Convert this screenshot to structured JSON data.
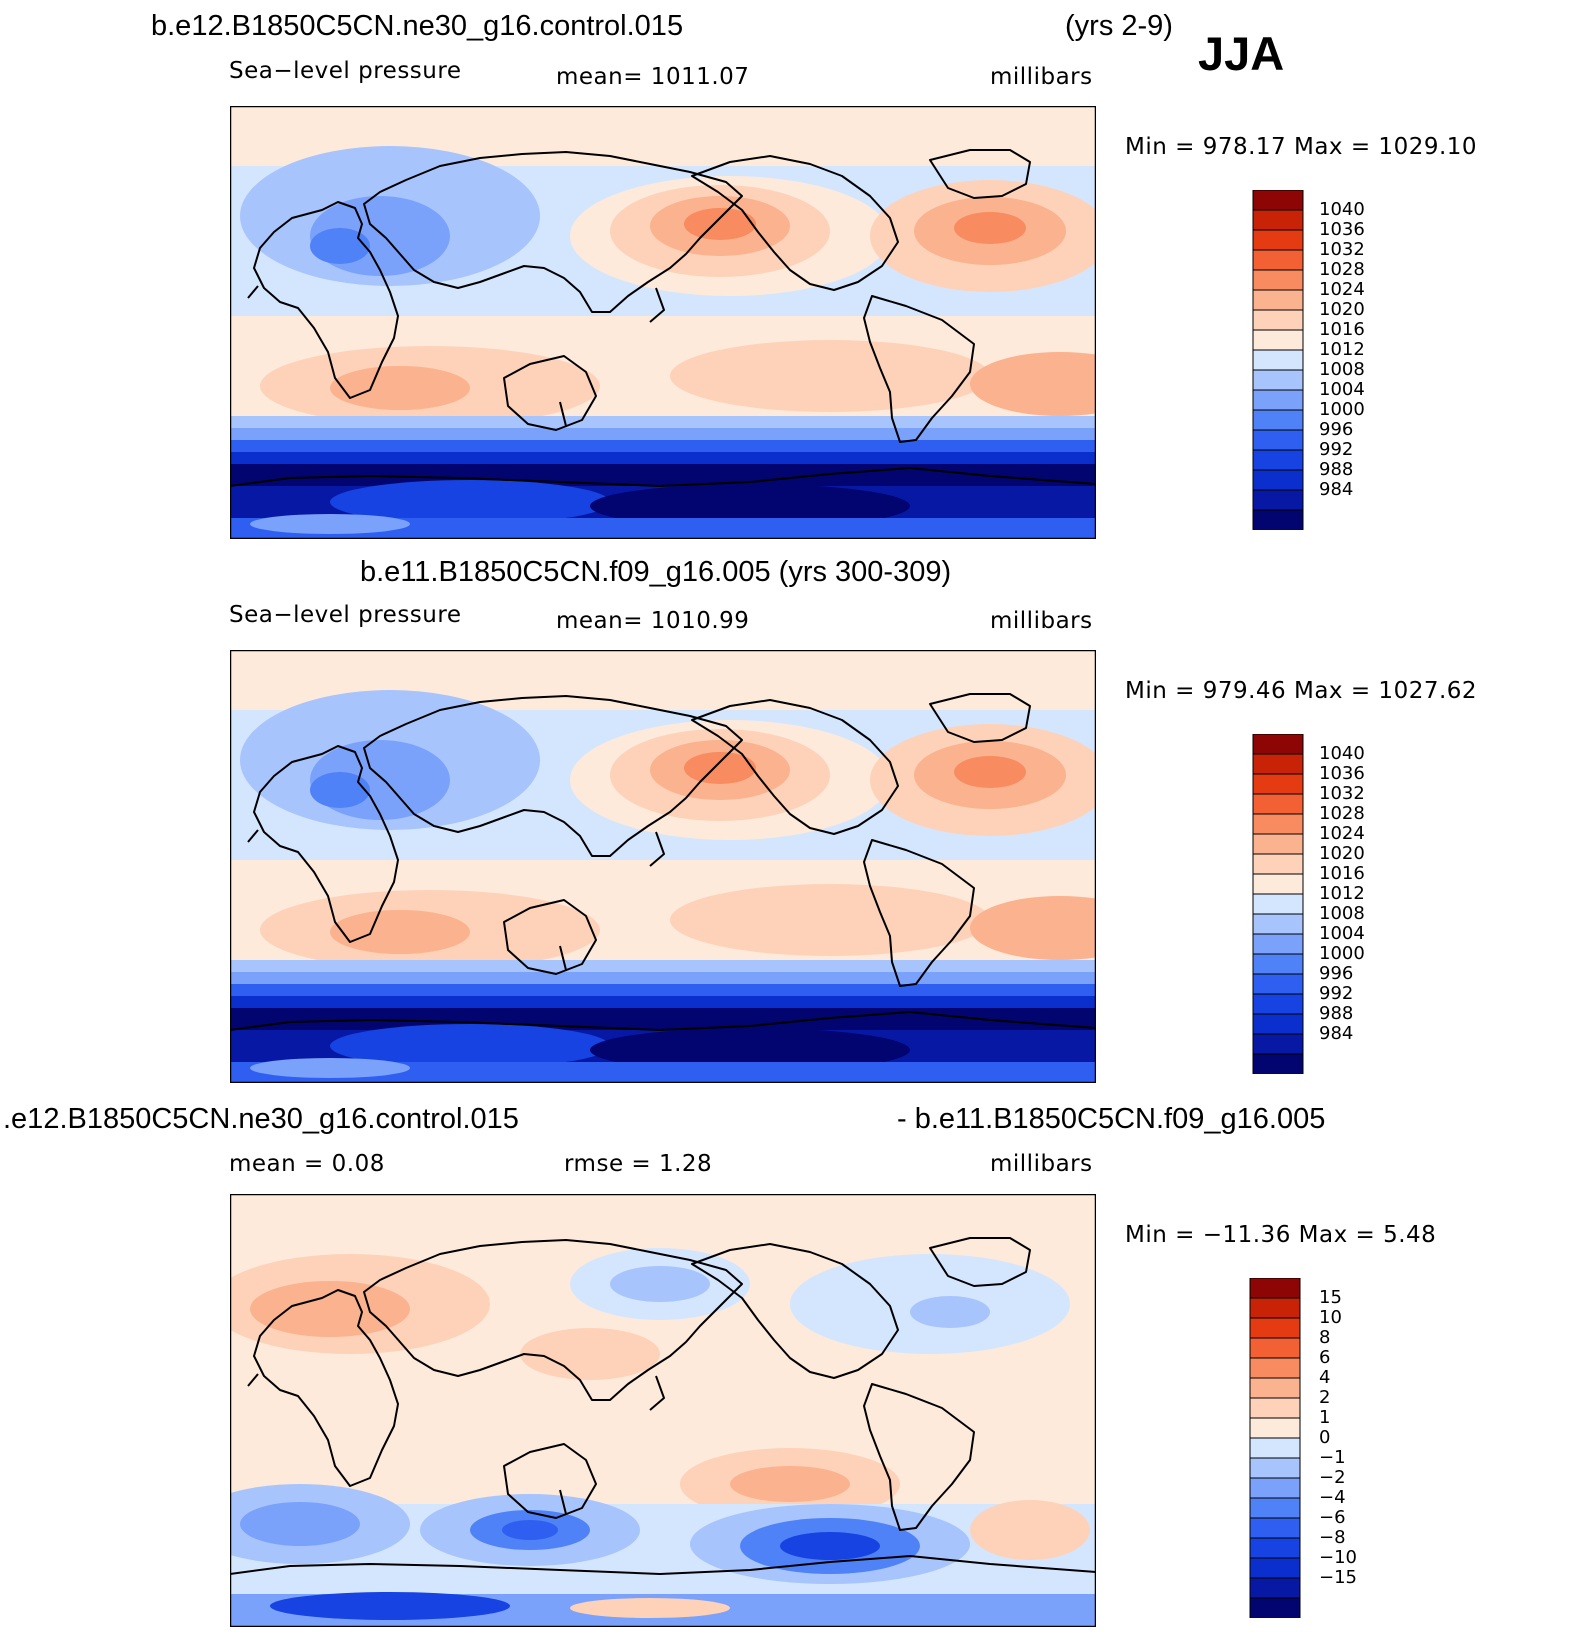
{
  "season": "JJA",
  "colors": {
    "pressure_levels": [
      "#02046f",
      "#0719a4",
      "#0b2fcd",
      "#1643e2",
      "#2e5ff0",
      "#4f82f7",
      "#7ba2fb",
      "#a7c4fc",
      "#d4e6fe",
      "#fdeadb",
      "#fdd2b9",
      "#fbb28e",
      "#f88b60",
      "#f26033",
      "#e43b12",
      "#c82306",
      "#8e0505"
    ],
    "diff_levels": [
      "#02046f",
      "#0719a4",
      "#0b2fcd",
      "#1643e2",
      "#2e5ff0",
      "#4f82f7",
      "#7ba2fb",
      "#a7c4fc",
      "#d4e6fe",
      "#fdeadb",
      "#fdd2b9",
      "#fbb28e",
      "#f88b60",
      "#f26033",
      "#e43b12",
      "#c82306",
      "#8e0505"
    ]
  },
  "panels": [
    {
      "title_left": "b.e12.B1850C5CN.ne30_g16.control.015",
      "title_right": "(yrs 2-9)",
      "subtitle_left": "Sea−level pressure",
      "subtitle_mid": "mean=  1011.07",
      "units": "millibars",
      "minmax": "Min  =  978.17  Max  =  1029.10",
      "colorbar_labels": [
        "1040",
        "1036",
        "1032",
        "1028",
        "1024",
        "1020",
        "1016",
        "1012",
        "1008",
        "1004",
        "1000",
        "996",
        "992",
        "988",
        "984"
      ]
    },
    {
      "title_center": "b.e11.B1850C5CN.f09_g16.005 (yrs 300-309)",
      "subtitle_left": "Sea−level pressure",
      "subtitle_mid": "mean=  1010.99",
      "units": "millibars",
      "minmax": "Min  =  979.46  Max  =  1027.62",
      "colorbar_labels": [
        "1040",
        "1036",
        "1032",
        "1028",
        "1024",
        "1020",
        "1016",
        "1012",
        "1008",
        "1004",
        "1000",
        "996",
        "992",
        "988",
        "984"
      ]
    },
    {
      "title_left": ".e12.B1850C5CN.ne30_g16.control.015",
      "title_right": "- b.e11.B1850C5CN.f09_g16.005",
      "subtitle_left": "mean  =      0.08",
      "subtitle_mid": "rmse  =      1.28",
      "units": "millibars",
      "minmax": "Min  =  −11.36  Max  =      5.48",
      "colorbar_labels": [
        "15",
        "10",
        "8",
        "6",
        "4",
        "2",
        "1",
        "0",
        "−1",
        "−2",
        "−4",
        "−6",
        "−8",
        "−10",
        "−15"
      ]
    }
  ]
}
